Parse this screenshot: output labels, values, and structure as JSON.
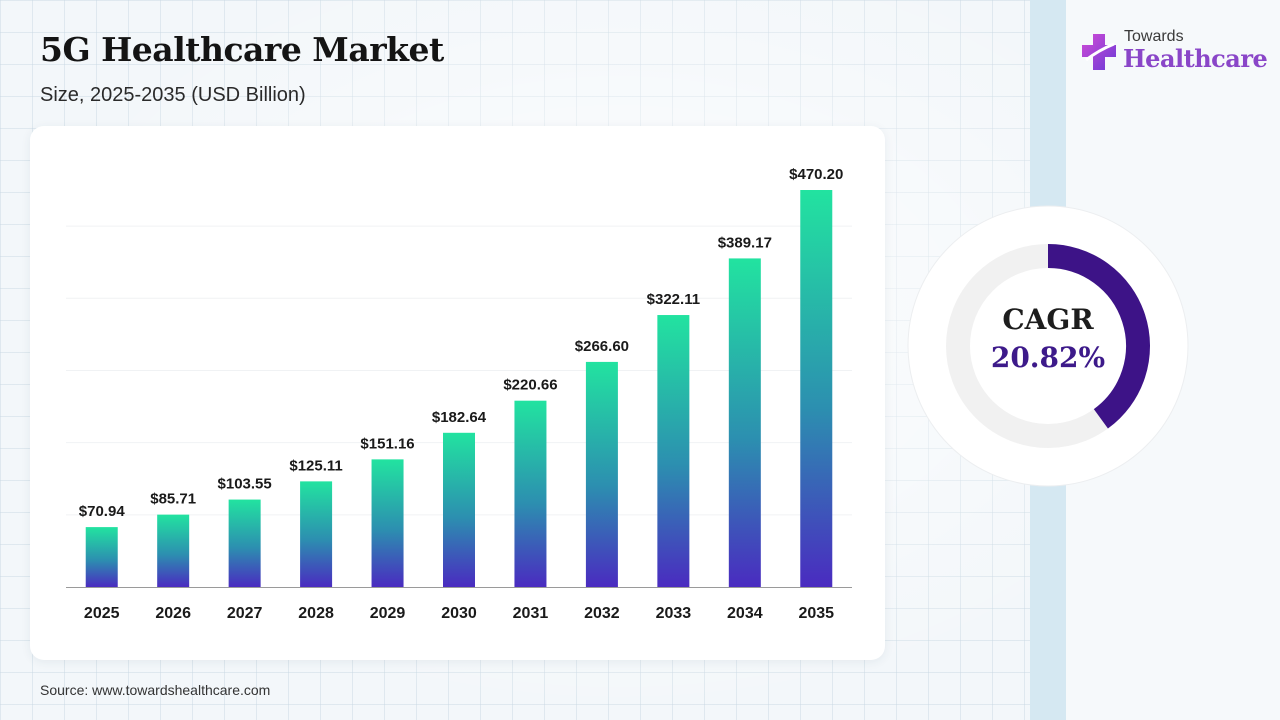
{
  "header": {
    "title": "5G Healthcare Market",
    "subtitle": "Size, 2025-2035 (USD Billion)"
  },
  "logo": {
    "small_text": "Towards",
    "big_text": "Healthcare"
  },
  "cagr": {
    "label": "CAGR",
    "value": "20.82%",
    "fraction": 0.4
  },
  "source": "Source: www.towardshealthcare.com",
  "colors": {
    "bar_top": "#22e3a0",
    "bar_bottom": "#4a2bc0",
    "cagr_ring": "#3d1387",
    "ring_track": "#f1f1f1"
  },
  "chart_data": {
    "type": "bar",
    "categories": [
      "2025",
      "2026",
      "2027",
      "2028",
      "2029",
      "2030",
      "2031",
      "2032",
      "2033",
      "2034",
      "2035"
    ],
    "values": [
      70.94,
      85.71,
      103.55,
      125.11,
      151.16,
      182.64,
      220.66,
      266.6,
      322.11,
      389.17,
      470.2
    ],
    "data_labels": [
      "$70.94",
      "$85.71",
      "$103.55",
      "$125.11",
      "$151.16",
      "$182.64",
      "$220.66",
      "$266.60",
      "$322.11",
      "$389.17",
      "$470.20"
    ],
    "ylim": [
      0,
      470.2
    ],
    "grid": true,
    "legend": "none"
  }
}
